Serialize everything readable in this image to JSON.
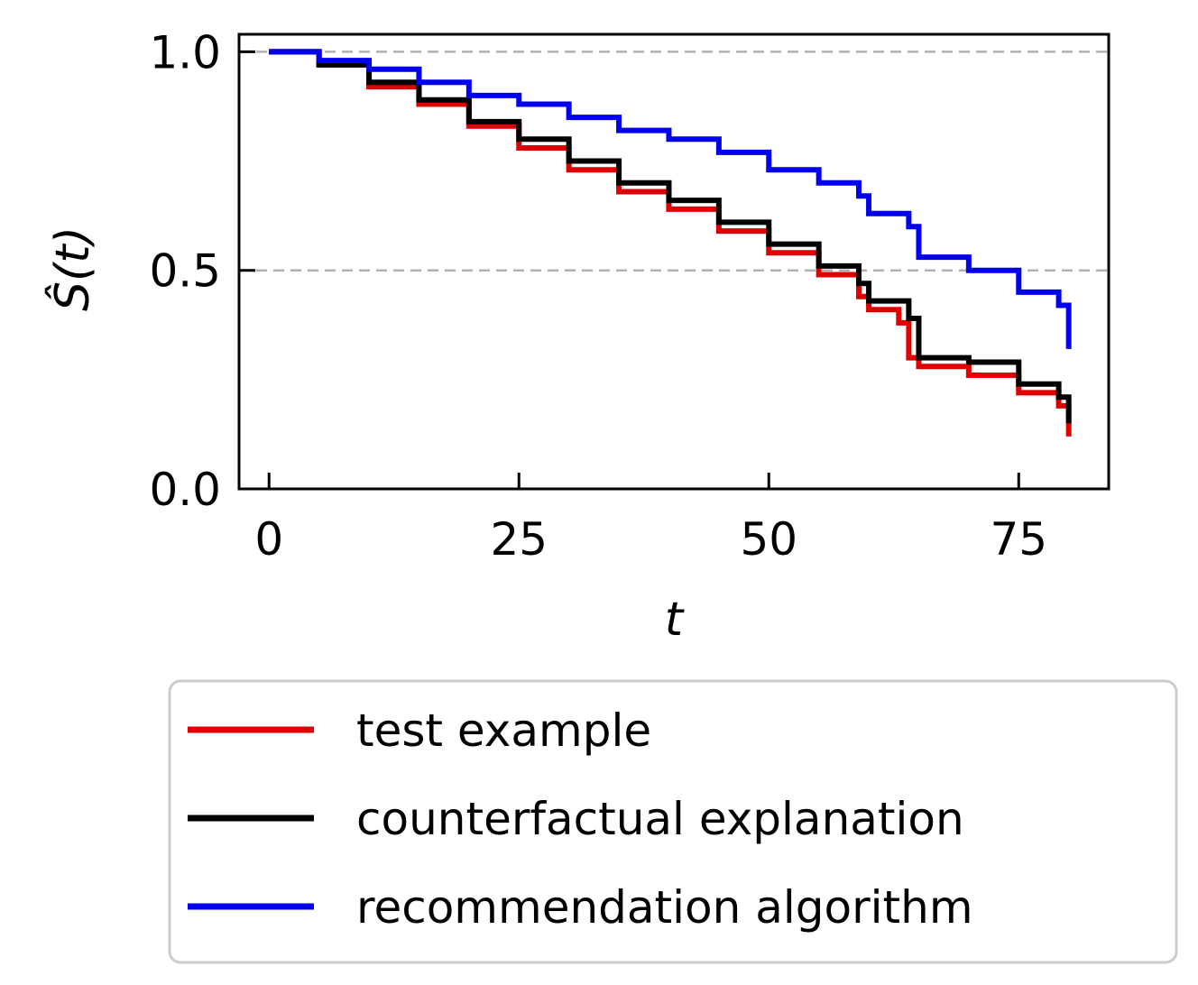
{
  "chart_data": {
    "type": "line",
    "title": "",
    "xlabel": "t",
    "ylabel": "Ŝ(t)",
    "xlim": [
      -3,
      84
    ],
    "ylim": [
      0,
      1.04
    ],
    "xticks": [
      0,
      25,
      50,
      75
    ],
    "xtick_labels": [
      "0",
      "25",
      "50",
      "75"
    ],
    "yticks": [
      0.0,
      0.5,
      1.0
    ],
    "ytick_labels": [
      "0.0",
      "0.5",
      "1.0"
    ],
    "reference_lines": [
      0.5,
      1.0
    ],
    "reference_line_color": "#b0b0b0",
    "grid": false,
    "legend_position": "below",
    "series": [
      {
        "name": "test example",
        "color": "#e00000",
        "step": true,
        "x": [
          0,
          5,
          10,
          15,
          20,
          25,
          30,
          35,
          40,
          45,
          50,
          55,
          59,
          60,
          63,
          64,
          65,
          70,
          75,
          79,
          80
        ],
        "y": [
          1.0,
          0.97,
          0.92,
          0.88,
          0.83,
          0.78,
          0.73,
          0.68,
          0.64,
          0.59,
          0.54,
          0.49,
          0.44,
          0.41,
          0.38,
          0.3,
          0.28,
          0.26,
          0.22,
          0.19,
          0.12
        ]
      },
      {
        "name": "counterfactual explanation",
        "color": "#000000",
        "step": true,
        "x": [
          0,
          5,
          10,
          15,
          20,
          25,
          30,
          35,
          40,
          45,
          50,
          55,
          59,
          60,
          64,
          65,
          70,
          75,
          79,
          80
        ],
        "y": [
          1.0,
          0.97,
          0.93,
          0.89,
          0.84,
          0.8,
          0.75,
          0.7,
          0.66,
          0.61,
          0.56,
          0.51,
          0.47,
          0.43,
          0.39,
          0.3,
          0.29,
          0.24,
          0.21,
          0.15
        ]
      },
      {
        "name": "recommendation algorithm",
        "color": "#0000ee",
        "step": true,
        "x": [
          0,
          5,
          10,
          15,
          20,
          25,
          30,
          35,
          40,
          45,
          50,
          55,
          59,
          60,
          64,
          65,
          70,
          75,
          79,
          80
        ],
        "y": [
          1.0,
          0.98,
          0.96,
          0.93,
          0.9,
          0.88,
          0.85,
          0.82,
          0.8,
          0.77,
          0.73,
          0.7,
          0.67,
          0.63,
          0.6,
          0.53,
          0.5,
          0.45,
          0.42,
          0.32
        ]
      }
    ]
  }
}
